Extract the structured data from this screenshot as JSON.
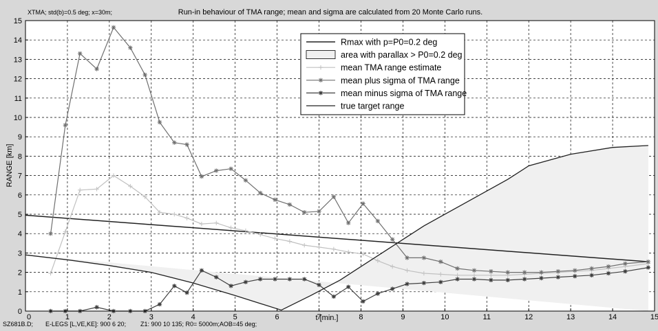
{
  "header": {
    "left_note": "XTMA; std(b)=0.5 deg; x=30m;",
    "title": "Run-in behaviour of TMA range; mean and sigma are calculated from 20 Monte Carlo runs."
  },
  "footer": {
    "left": "SZ681B.D;",
    "elegs": "E-LEGS [L,VE,KE]: 900  6  20;",
    "z1": "Z1: 900 10 135; R0= 5000m;AOB=45 deg;"
  },
  "colors": {
    "background": "#d8d8d8",
    "plot_background": "#ffffff",
    "area_fill": "#f0f0f0",
    "line_dark": "#202020",
    "mean_light": "#c0c0c0",
    "plus_sigma": "#6e6e6e",
    "minus_sigma": "#404040"
  },
  "chart_data": {
    "type": "line",
    "title": "Run-in behaviour of TMA range; mean and sigma are calculated from 20 Monte Carlo runs.",
    "xlabel": "t [min.]",
    "ylabel": "RANGE [km]",
    "xlim": [
      0,
      15
    ],
    "ylim": [
      0,
      15
    ],
    "xticks": [
      0,
      1,
      2,
      3,
      4,
      5,
      6,
      7,
      8,
      9,
      10,
      11,
      12,
      13,
      14,
      15
    ],
    "yticks": [
      0,
      1,
      2,
      3,
      4,
      5,
      6,
      7,
      8,
      9,
      10,
      11,
      12,
      13,
      14,
      15
    ],
    "grid": true,
    "legend_position": "top-right",
    "series": [
      {
        "name": "Rmax with p=P0=0.2 deg",
        "kind": "line",
        "x": [
          0,
          14.85
        ],
        "y": [
          4.95,
          2.55
        ]
      },
      {
        "name": "area with parallax > P0=0.2 deg",
        "kind": "area",
        "x": [
          0,
          1,
          2,
          3,
          4,
          5,
          6.1,
          6.8,
          7.5,
          8.5,
          9.5,
          10.5,
          11.5,
          12,
          13,
          14,
          14.85,
          14.85
        ],
        "y": [
          2.9,
          2.65,
          2.35,
          2.0,
          1.45,
          0.8,
          0.05,
          0.8,
          1.6,
          3.0,
          4.4,
          5.6,
          6.8,
          7.5,
          8.1,
          8.45,
          8.55,
          0
        ]
      },
      {
        "name": "mean TMA range estimate",
        "kind": "line-marker",
        "x": [
          0.6,
          0.95,
          1.3,
          1.7,
          2.1,
          2.5,
          2.85,
          3.2,
          3.55,
          3.85,
          4.2,
          4.55,
          4.9,
          5.25,
          5.6,
          5.95,
          6.3,
          6.65,
          7.0,
          7.35,
          7.7,
          8.05,
          8.4,
          8.75,
          9.1,
          9.5,
          9.9,
          10.3,
          10.7,
          11.1,
          11.5,
          11.9,
          12.3,
          12.7,
          13.1,
          13.5,
          13.9,
          14.3,
          14.85
        ],
        "y": [
          1.95,
          4.1,
          6.25,
          6.3,
          7.0,
          6.45,
          5.9,
          5.1,
          5.0,
          4.8,
          4.5,
          4.55,
          4.3,
          4.15,
          3.95,
          3.75,
          3.6,
          3.4,
          3.3,
          3.2,
          3.05,
          2.95,
          2.6,
          2.3,
          2.1,
          1.95,
          1.9,
          1.85,
          1.85,
          1.85,
          1.85,
          1.9,
          1.95,
          2.0,
          2.05,
          2.1,
          2.2,
          2.3,
          2.45
        ]
      },
      {
        "name": "mean plus sigma of TMA range",
        "kind": "line-marker",
        "x": [
          0.6,
          0.95,
          1.3,
          1.7,
          2.1,
          2.5,
          2.85,
          3.2,
          3.55,
          3.85,
          4.2,
          4.55,
          4.9,
          5.25,
          5.6,
          5.95,
          6.3,
          6.65,
          7.0,
          7.35,
          7.7,
          8.05,
          8.4,
          8.75,
          9.1,
          9.5,
          9.9,
          10.3,
          10.7,
          11.1,
          11.5,
          11.9,
          12.3,
          12.7,
          13.1,
          13.5,
          13.9,
          14.3,
          14.85
        ],
        "y": [
          4.0,
          9.6,
          13.3,
          12.5,
          14.65,
          13.6,
          12.2,
          9.75,
          8.7,
          8.6,
          6.95,
          7.25,
          7.35,
          6.75,
          6.1,
          5.75,
          5.5,
          5.1,
          5.15,
          5.9,
          4.55,
          5.55,
          4.65,
          3.7,
          2.75,
          2.75,
          2.55,
          2.2,
          2.1,
          2.05,
          2.0,
          2.0,
          2.0,
          2.05,
          2.1,
          2.2,
          2.3,
          2.45,
          2.55
        ]
      },
      {
        "name": "mean minus sigma of TMA range",
        "kind": "line-marker",
        "x": [
          0.6,
          0.95,
          1.3,
          1.7,
          2.1,
          2.5,
          2.85,
          3.2,
          3.55,
          3.85,
          4.2,
          4.55,
          4.9,
          5.25,
          5.6,
          5.95,
          6.3,
          6.65,
          7.0,
          7.35,
          7.7,
          8.05,
          8.4,
          8.75,
          9.1,
          9.5,
          9.9,
          10.3,
          10.7,
          11.1,
          11.5,
          11.9,
          12.3,
          12.7,
          13.1,
          13.5,
          13.9,
          14.3,
          14.85
        ],
        "y": [
          0.0,
          0.0,
          0.0,
          0.2,
          0.0,
          0.0,
          0.0,
          0.35,
          1.3,
          0.95,
          2.1,
          1.75,
          1.3,
          1.5,
          1.65,
          1.65,
          1.65,
          1.65,
          1.35,
          0.75,
          1.25,
          0.5,
          0.9,
          1.15,
          1.4,
          1.45,
          1.5,
          1.65,
          1.65,
          1.6,
          1.6,
          1.65,
          1.7,
          1.75,
          1.8,
          1.85,
          1.95,
          2.05,
          2.25
        ]
      },
      {
        "name": "true target range",
        "kind": "line",
        "x": [
          0,
          1,
          2,
          3,
          4,
          5,
          6.1,
          6.8,
          7.5,
          8.5,
          9.5,
          10.5,
          11.5,
          12,
          13,
          14,
          14.85
        ],
        "y": [
          2.9,
          2.65,
          2.35,
          2.0,
          1.45,
          0.8,
          0.05,
          0.8,
          1.6,
          3.0,
          4.4,
          5.6,
          6.8,
          7.5,
          8.1,
          8.45,
          8.55
        ]
      }
    ]
  }
}
